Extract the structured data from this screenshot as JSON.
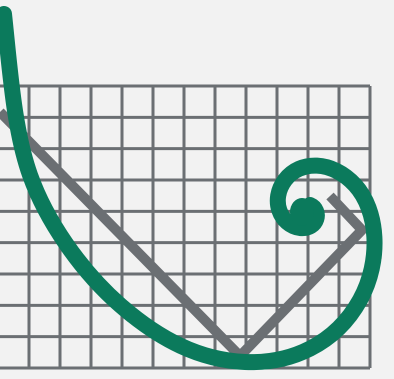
{
  "image": {
    "description_free": true,
    "colors": {
      "background": "#f2f2f2",
      "grid": "#6b6f73",
      "diagonal": "#6b6f73",
      "spiral": "#0b7a5c"
    },
    "grid": {
      "columns": 12,
      "rows": 9
    }
  }
}
